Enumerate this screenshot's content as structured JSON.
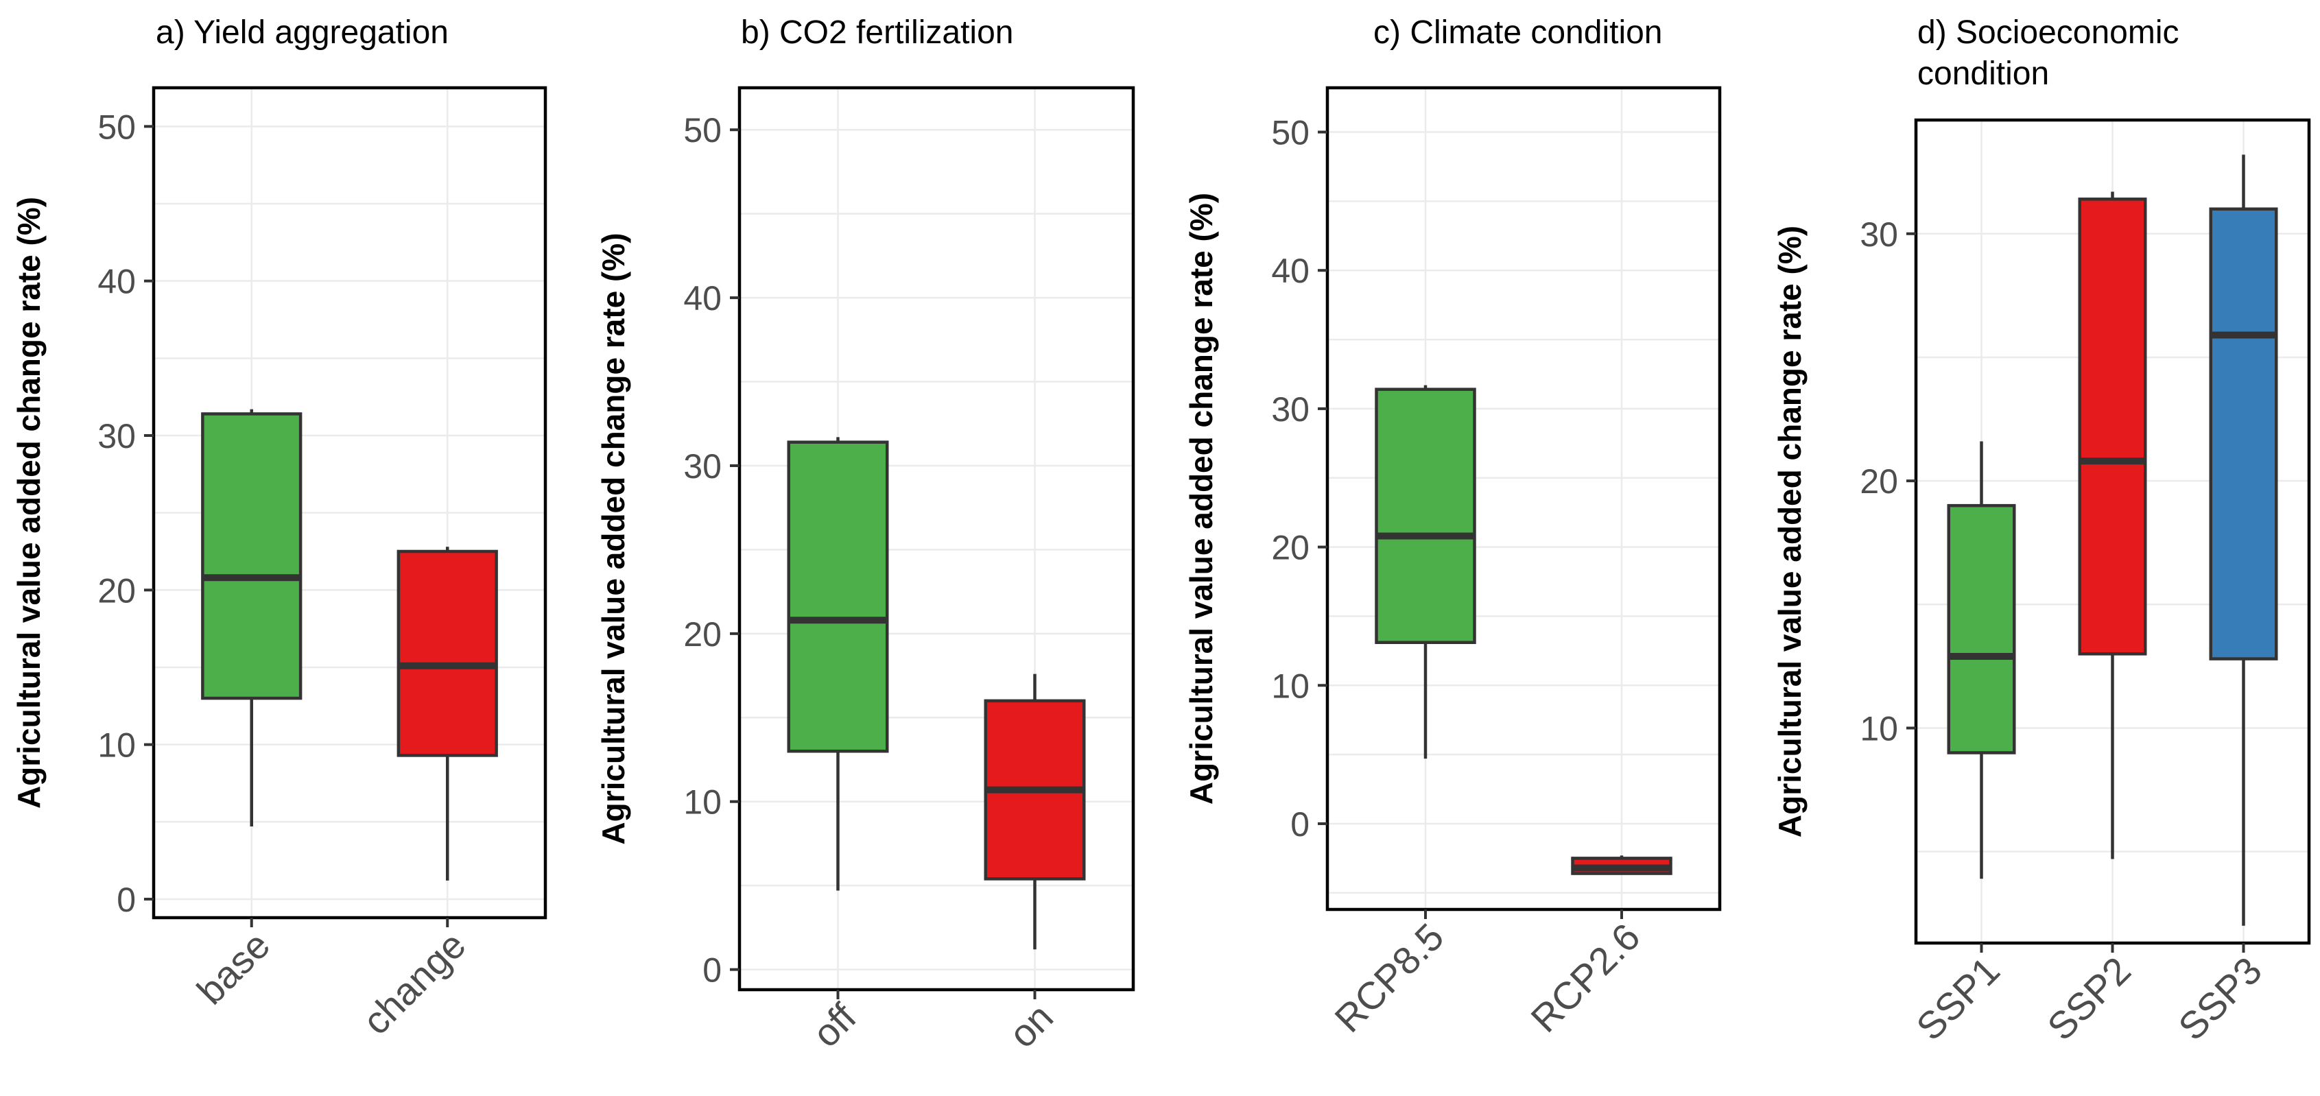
{
  "figure": {
    "y_axis_label": "Agricultural value added change rate (%)"
  },
  "chart_data": [
    {
      "type": "box",
      "title": "a) Yield aggregation",
      "ylabel": "Agricultural value added change rate (%)",
      "ylim": [
        -1.2,
        52.5
      ],
      "yticks": [
        0,
        10,
        20,
        30,
        40,
        50
      ],
      "ytick_labels": [
        "0",
        "10",
        "20",
        "30",
        "40",
        "50"
      ],
      "grid": true,
      "categories": [
        "base",
        "change"
      ],
      "boxes": [
        {
          "label": "base",
          "lower_whisker": 4.7,
          "q1": 13.0,
          "median": 20.8,
          "q3": 31.4,
          "upper_whisker": 31.7,
          "color": "#4daf4a"
        },
        {
          "label": "change",
          "lower_whisker": 1.2,
          "q1": 9.3,
          "median": 15.1,
          "q3": 22.5,
          "upper_whisker": 22.8,
          "color": "#e41a1c"
        }
      ]
    },
    {
      "type": "box",
      "title": "b) CO2 fertilization",
      "ylabel": "Agricultural value added change rate (%)",
      "ylim": [
        -1.2,
        52.5
      ],
      "yticks": [
        0,
        10,
        20,
        30,
        40,
        50
      ],
      "ytick_labels": [
        "0",
        "10",
        "20",
        "30",
        "40",
        "50"
      ],
      "grid": true,
      "categories": [
        "off",
        "on"
      ],
      "boxes": [
        {
          "label": "off",
          "lower_whisker": 4.7,
          "q1": 13.0,
          "median": 20.8,
          "q3": 31.4,
          "upper_whisker": 31.7,
          "color": "#4daf4a"
        },
        {
          "label": "on",
          "lower_whisker": 1.2,
          "q1": 5.4,
          "median": 10.7,
          "q3": 16.0,
          "upper_whisker": 17.6,
          "color": "#e41a1c"
        }
      ]
    },
    {
      "type": "box",
      "title": "c) Climate condition",
      "ylabel": "Agricultural value added change rate (%)",
      "ylim": [
        -6.2,
        53.2
      ],
      "yticks": [
        0,
        10,
        20,
        30,
        40,
        50
      ],
      "ytick_labels": [
        "0",
        "10",
        "20",
        "30",
        "40",
        "50"
      ],
      "grid": true,
      "categories": [
        "RCP8.5",
        "RCP2.6"
      ],
      "boxes": [
        {
          "label": "RCP8.5",
          "lower_whisker": 4.7,
          "q1": 13.1,
          "median": 20.8,
          "q3": 31.4,
          "upper_whisker": 31.7,
          "color": "#4daf4a"
        },
        {
          "label": "RCP2.6",
          "lower_whisker": -3.6,
          "q1": -3.6,
          "median": -3.2,
          "q3": -2.5,
          "upper_whisker": -2.3,
          "color": "#e41a1c"
        }
      ]
    },
    {
      "type": "box",
      "title": "d) Socioeconomic condition",
      "title_lines": [
        "d) Socioeconomic",
        "condition"
      ],
      "ylabel": "Agricultural value added change rate (%)",
      "ylim": [
        1.3,
        34.6
      ],
      "yticks": [
        10,
        20,
        30
      ],
      "ytick_labels": [
        "10",
        "20",
        "30"
      ],
      "grid": true,
      "categories": [
        "SSP1",
        "SSP2",
        "SSP3"
      ],
      "boxes": [
        {
          "label": "SSP1",
          "lower_whisker": 3.9,
          "q1": 9.0,
          "median": 12.9,
          "q3": 19.0,
          "upper_whisker": 21.6,
          "color": "#4daf4a"
        },
        {
          "label": "SSP2",
          "lower_whisker": 4.7,
          "q1": 13.0,
          "median": 20.8,
          "q3": 31.4,
          "upper_whisker": 31.7,
          "color": "#e41a1c"
        },
        {
          "label": "SSP3",
          "lower_whisker": 2.0,
          "q1": 12.8,
          "median": 25.9,
          "q3": 31.0,
          "upper_whisker": 33.2,
          "color": "#377eb8"
        }
      ]
    }
  ]
}
